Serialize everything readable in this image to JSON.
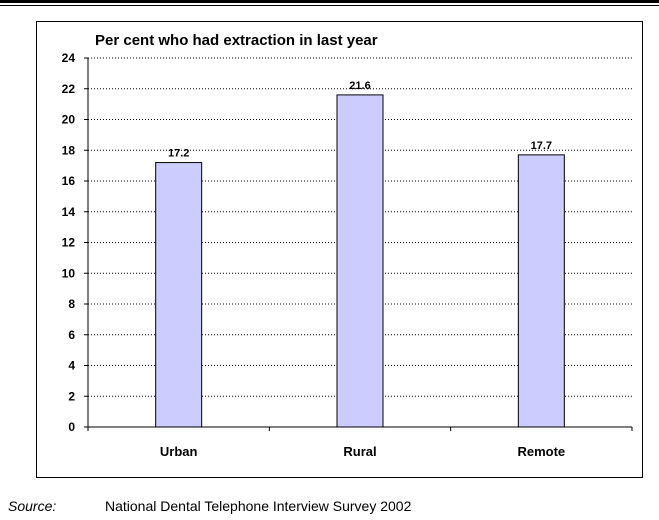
{
  "chart_data": {
    "type": "bar",
    "title": "Per cent who had extraction in last year",
    "categories": [
      "Urban",
      "Rural",
      "Remote"
    ],
    "values": [
      17.2,
      21.6,
      17.7
    ],
    "data_labels": [
      "17.2",
      "21.6",
      "17.7"
    ],
    "ylim": [
      0,
      24
    ],
    "yticks": [
      0,
      2,
      4,
      6,
      8,
      10,
      12,
      14,
      16,
      18,
      20,
      22,
      24
    ],
    "grid": "horizontal dotted",
    "bar_color": "#ccccff",
    "xlabel": "",
    "ylabel": ""
  },
  "source": {
    "label": "Source:",
    "text": "National Dental Telephone Interview Survey 2002"
  }
}
